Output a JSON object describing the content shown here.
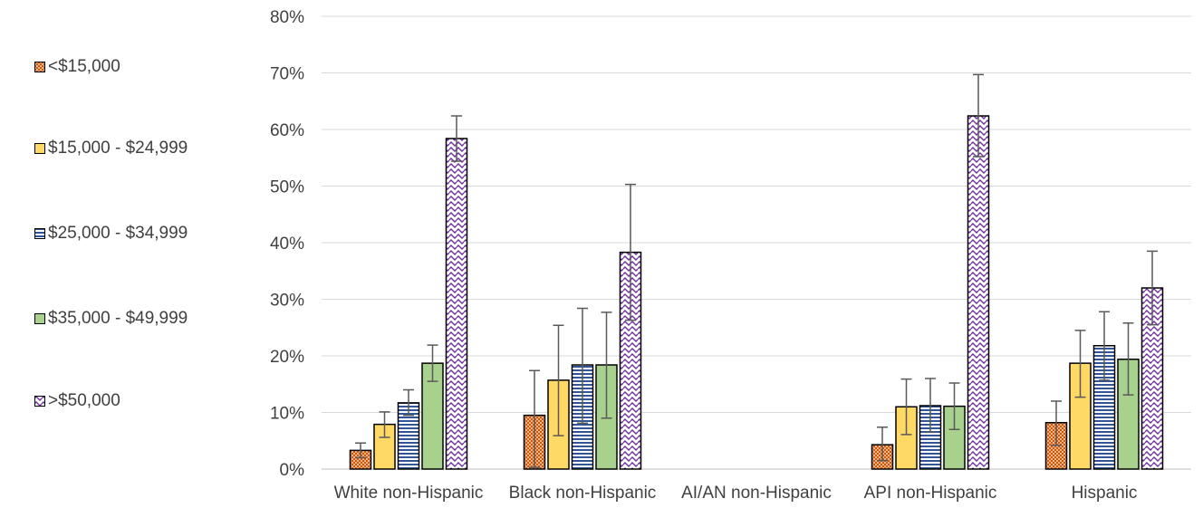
{
  "chart_data": {
    "type": "bar",
    "categories": [
      "White non-Hispanic",
      "Black non-Hispanic",
      "AI/AN non-Hispanic",
      "API non-Hispanic",
      "Hispanic"
    ],
    "y_ticks": [
      "0%",
      "10%",
      "20%",
      "30%",
      "40%",
      "50%",
      "60%",
      "70%",
      "80%"
    ],
    "ylim": [
      0,
      80
    ],
    "grid": true,
    "legend_position": "left",
    "series": [
      {
        "name": "<$15,000",
        "pattern": "checker",
        "color": "#C55A11",
        "values": [
          3.3,
          9.5,
          null,
          4.3,
          8.2
        ],
        "err_low": [
          2.0,
          0.3,
          null,
          1.5,
          4.2
        ],
        "err_high": [
          4.6,
          17.4,
          null,
          7.4,
          12.0
        ]
      },
      {
        "name": "$15,000 - $24,999",
        "pattern": "solid",
        "color": "#FFD966",
        "values": [
          7.9,
          15.7,
          null,
          11.0,
          18.7
        ],
        "err_low": [
          5.6,
          5.9,
          null,
          6.1,
          12.7
        ],
        "err_high": [
          10.1,
          25.4,
          null,
          15.9,
          24.5
        ]
      },
      {
        "name": "$25,000 - $34,999",
        "pattern": "horizontal",
        "color": "#2F5597",
        "values": [
          11.7,
          18.4,
          null,
          11.2,
          21.8
        ],
        "err_low": [
          9.5,
          8.1,
          null,
          6.5,
          15.7
        ],
        "err_high": [
          14.0,
          28.4,
          null,
          16.0,
          27.8
        ]
      },
      {
        "name": "$35,000 - $49,999",
        "pattern": "solid",
        "color": "#A9D18E",
        "values": [
          18.7,
          18.4,
          null,
          11.1,
          19.4
        ],
        "err_low": [
          15.5,
          9.0,
          null,
          7.0,
          13.1
        ],
        "err_high": [
          21.9,
          27.7,
          null,
          15.2,
          25.8
        ]
      },
      {
        "name": ">$50,000",
        "pattern": "wave",
        "color": "#7030A0",
        "values": [
          58.4,
          38.3,
          null,
          62.4,
          32.0
        ],
        "err_low": [
          54.4,
          26.3,
          null,
          55.2,
          25.5
        ],
        "err_high": [
          62.4,
          50.3,
          null,
          69.7,
          38.5
        ]
      }
    ]
  }
}
